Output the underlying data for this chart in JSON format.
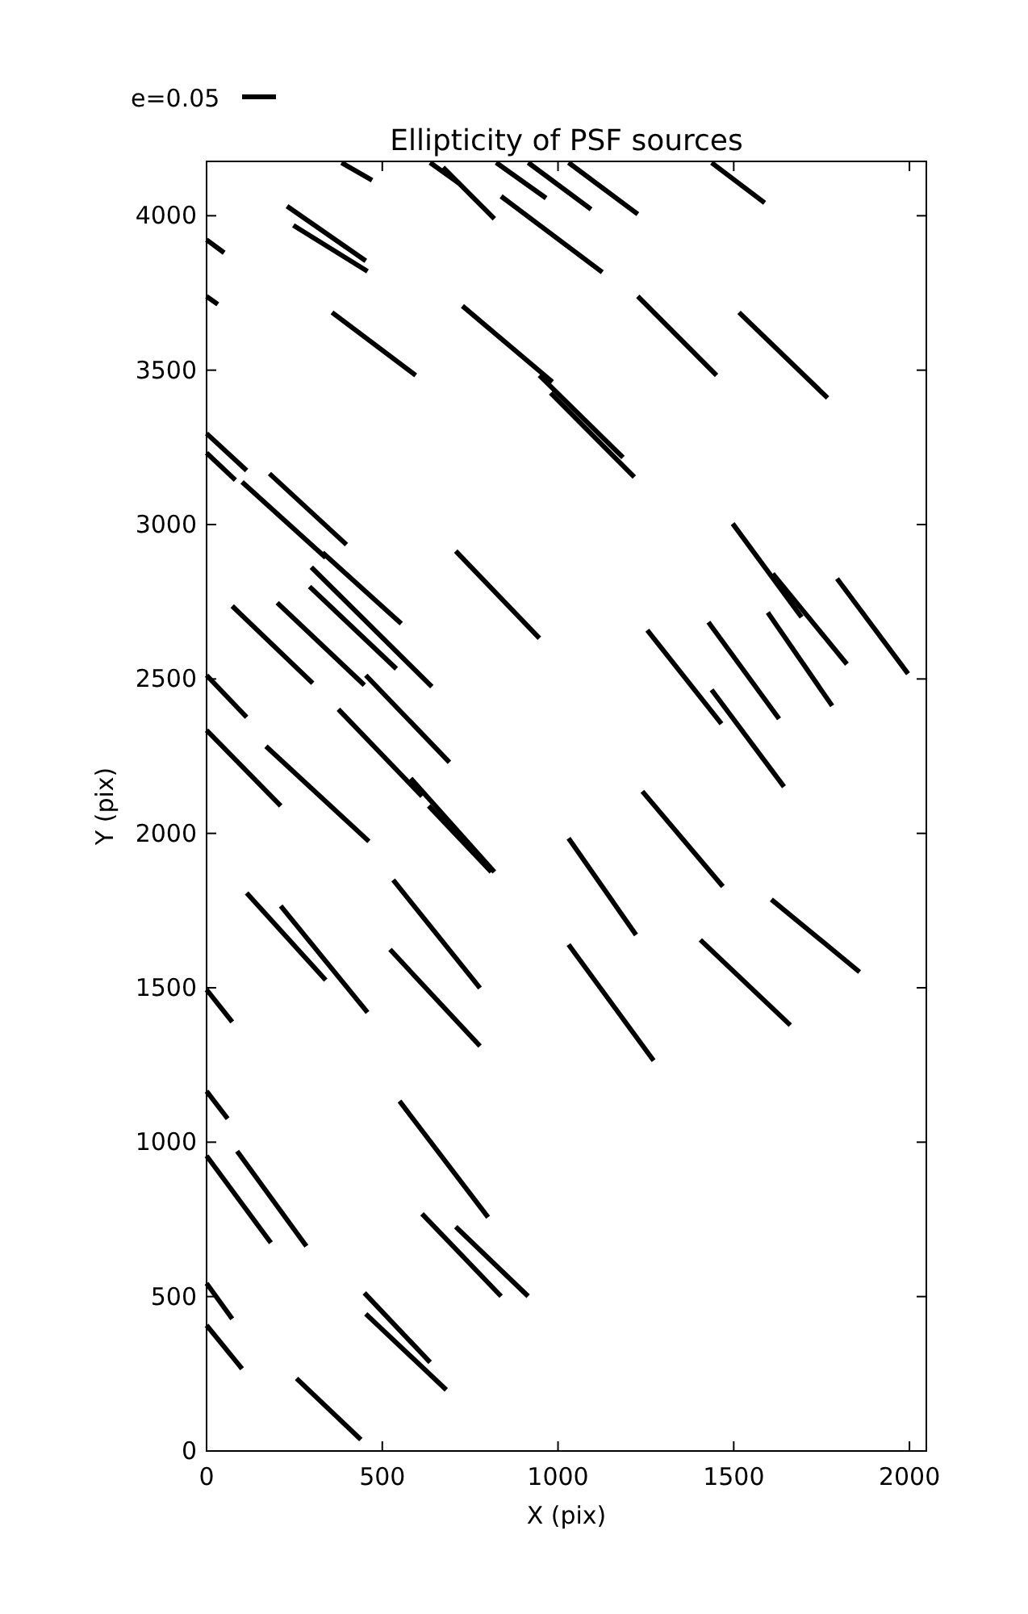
{
  "chart_data": {
    "type": "line",
    "title": "Ellipticity of PSF sources",
    "xlabel": "X (pix)",
    "ylabel": "Y (pix)",
    "annotations": [
      "e=0.05"
    ],
    "xlim": [
      0,
      2048
    ],
    "ylim": [
      0,
      4176
    ],
    "xticks": [
      0,
      500,
      1000,
      1500,
      2000
    ],
    "yticks": [
      0,
      500,
      1000,
      1500,
      2000,
      2500,
      3000,
      3500,
      4000
    ],
    "series": [
      {
        "color": "#000000",
        "x": [
          384,
          471
        ],
        "values": [
          4172,
          4115
        ]
      },
      {
        "color": "#000000",
        "x": [
          636,
          718
        ],
        "values": [
          4172,
          4105
        ]
      },
      {
        "color": "#000000",
        "x": [
          673,
          819
        ],
        "values": [
          4157,
          3990
        ]
      },
      {
        "color": "#000000",
        "x": [
          824,
          966
        ],
        "values": [
          4172,
          4057
        ]
      },
      {
        "color": "#000000",
        "x": [
          915,
          1094
        ],
        "values": [
          4172,
          4021
        ]
      },
      {
        "color": "#000000",
        "x": [
          1030,
          1227
        ],
        "values": [
          4172,
          4005
        ]
      },
      {
        "color": "#000000",
        "x": [
          1437,
          1588
        ],
        "values": [
          4172,
          4042
        ]
      },
      {
        "color": "#000000",
        "x": [
          229,
          453
        ],
        "values": [
          4031,
          3854
        ]
      },
      {
        "color": "#000000",
        "x": [
          247,
          458
        ],
        "values": [
          3969,
          3820
        ]
      },
      {
        "color": "#000000",
        "x": [
          0,
          50
        ],
        "values": [
          3922,
          3880
        ]
      },
      {
        "color": "#000000",
        "x": [
          0,
          32
        ],
        "values": [
          3739,
          3713
        ]
      },
      {
        "color": "#000000",
        "x": [
          838,
          1126
        ],
        "values": [
          4063,
          3817
        ]
      },
      {
        "color": "#000000",
        "x": [
          357,
          595
        ],
        "values": [
          3687,
          3483
        ]
      },
      {
        "color": "#000000",
        "x": [
          728,
          984
        ],
        "values": [
          3708,
          3462
        ]
      },
      {
        "color": "#000000",
        "x": [
          947,
          1185
        ],
        "values": [
          3483,
          3217
        ]
      },
      {
        "color": "#000000",
        "x": [
          979,
          1217
        ],
        "values": [
          3426,
          3154
        ]
      },
      {
        "color": "#000000",
        "x": [
          1227,
          1451
        ],
        "values": [
          3739,
          3483
        ]
      },
      {
        "color": "#000000",
        "x": [
          1515,
          1767
        ],
        "values": [
          3687,
          3410
        ]
      },
      {
        "color": "#000000",
        "x": [
          0,
          114
        ],
        "values": [
          3295,
          3175
        ]
      },
      {
        "color": "#000000",
        "x": [
          0,
          82
        ],
        "values": [
          3232,
          3144
        ]
      },
      {
        "color": "#000000",
        "x": [
          179,
          398
        ],
        "values": [
          3165,
          2935
        ]
      },
      {
        "color": "#000000",
        "x": [
          101,
          339
        ],
        "values": [
          3138,
          2893
        ]
      },
      {
        "color": "#000000",
        "x": [
          330,
          554
        ],
        "values": [
          2909,
          2679
        ]
      },
      {
        "color": "#000000",
        "x": [
          709,
          947
        ],
        "values": [
          2914,
          2632
        ]
      },
      {
        "color": "#000000",
        "x": [
          298,
          641
        ],
        "values": [
          2862,
          2475
        ]
      },
      {
        "color": "#000000",
        "x": [
          293,
          540
        ],
        "values": [
          2799,
          2533
        ]
      },
      {
        "color": "#000000",
        "x": [
          73,
          302
        ],
        "values": [
          2736,
          2486
        ]
      },
      {
        "color": "#000000",
        "x": [
          201,
          449
        ],
        "values": [
          2747,
          2480
        ]
      },
      {
        "color": "#000000",
        "x": [
          1497,
          1693
        ],
        "values": [
          3003,
          2700
        ]
      },
      {
        "color": "#000000",
        "x": [
          1611,
          1822
        ],
        "values": [
          2841,
          2548
        ]
      },
      {
        "color": "#000000",
        "x": [
          1794,
          1996
        ],
        "values": [
          2825,
          2517
        ]
      },
      {
        "color": "#000000",
        "x": [
          1254,
          1465
        ],
        "values": [
          2658,
          2355
        ]
      },
      {
        "color": "#000000",
        "x": [
          1428,
          1629
        ],
        "values": [
          2684,
          2371
        ]
      },
      {
        "color": "#000000",
        "x": [
          1597,
          1780
        ],
        "values": [
          2715,
          2413
        ]
      },
      {
        "color": "#000000",
        "x": [
          1437,
          1643
        ],
        "values": [
          2465,
          2151
        ]
      },
      {
        "color": "#000000",
        "x": [
          0,
          114
        ],
        "values": [
          2512,
          2376
        ]
      },
      {
        "color": "#000000",
        "x": [
          0,
          211
        ],
        "values": [
          2334,
          2089
        ]
      },
      {
        "color": "#000000",
        "x": [
          453,
          691
        ],
        "values": [
          2512,
          2230
        ]
      },
      {
        "color": "#000000",
        "x": [
          375,
          613
        ],
        "values": [
          2402,
          2120
        ]
      },
      {
        "color": "#000000",
        "x": [
          169,
          462
        ],
        "values": [
          2282,
          1974
        ]
      },
      {
        "color": "#000000",
        "x": [
          581,
          819
        ],
        "values": [
          2178,
          1875
        ]
      },
      {
        "color": "#000000",
        "x": [
          632,
          810
        ],
        "values": [
          2089,
          1875
        ]
      },
      {
        "color": "#000000",
        "x": [
          1240,
          1469
        ],
        "values": [
          2136,
          1828
        ]
      },
      {
        "color": "#000000",
        "x": [
          1030,
          1222
        ],
        "values": [
          1984,
          1671
        ]
      },
      {
        "color": "#000000",
        "x": [
          1607,
          1858
        ],
        "values": [
          1786,
          1551
        ]
      },
      {
        "color": "#000000",
        "x": [
          114,
          339
        ],
        "values": [
          1807,
          1525
        ]
      },
      {
        "color": "#000000",
        "x": [
          211,
          458
        ],
        "values": [
          1765,
          1420
        ]
      },
      {
        "color": "#000000",
        "x": [
          531,
          778
        ],
        "values": [
          1849,
          1499
        ]
      },
      {
        "color": "#000000",
        "x": [
          522,
          778
        ],
        "values": [
          1624,
          1311
        ]
      },
      {
        "color": "#000000",
        "x": [
          1030,
          1272
        ],
        "values": [
          1640,
          1264
        ]
      },
      {
        "color": "#000000",
        "x": [
          1405,
          1661
        ],
        "values": [
          1655,
          1379
        ]
      },
      {
        "color": "#000000",
        "x": [
          0,
          73
        ],
        "values": [
          1494,
          1389
        ]
      },
      {
        "color": "#000000",
        "x": [
          0,
          60
        ],
        "values": [
          1165,
          1076
        ]
      },
      {
        "color": "#000000",
        "x": [
          549,
          801
        ],
        "values": [
          1133,
          757
        ]
      },
      {
        "color": "#000000",
        "x": [
          0,
          183
        ],
        "values": [
          956,
          674
        ]
      },
      {
        "color": "#000000",
        "x": [
          87,
          284
        ],
        "values": [
          971,
          663
        ]
      },
      {
        "color": "#000000",
        "x": [
          613,
          838
        ],
        "values": [
          768,
          501
        ]
      },
      {
        "color": "#000000",
        "x": [
          709,
          915
        ],
        "values": [
          726,
          501
        ]
      },
      {
        "color": "#000000",
        "x": [
          0,
          73
        ],
        "values": [
          543,
          428
        ]
      },
      {
        "color": "#000000",
        "x": [
          0,
          101
        ],
        "values": [
          407,
          266
        ]
      },
      {
        "color": "#000000",
        "x": [
          449,
          636
        ],
        "values": [
          512,
          287
        ]
      },
      {
        "color": "#000000",
        "x": [
          453,
          682
        ],
        "values": [
          444,
          198
        ]
      },
      {
        "color": "#000000",
        "x": [
          256,
          439
        ],
        "values": [
          235,
          37
        ]
      }
    ]
  }
}
